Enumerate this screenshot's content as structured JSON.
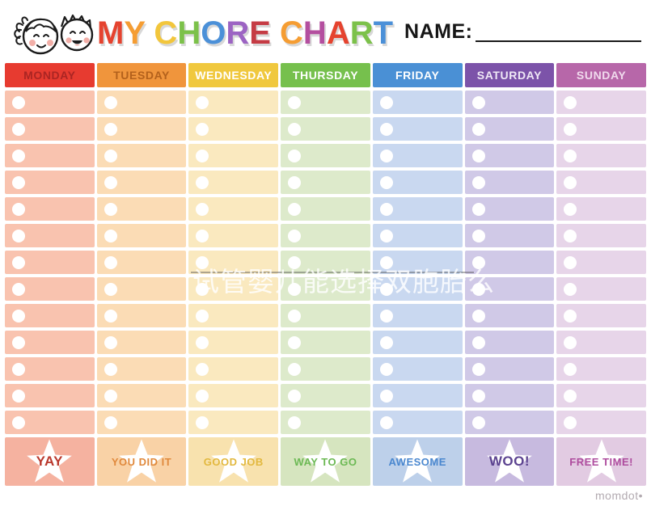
{
  "header": {
    "title_letters": [
      {
        "ch": "M",
        "color": "#E5432F"
      },
      {
        "ch": "Y",
        "color": "#F59D33"
      },
      {
        "ch": " ",
        "color": ""
      },
      {
        "ch": "C",
        "color": "#F2C63C"
      },
      {
        "ch": "H",
        "color": "#7CC14A"
      },
      {
        "ch": "O",
        "color": "#4B90D8"
      },
      {
        "ch": "R",
        "color": "#9C64C3"
      },
      {
        "ch": "E",
        "color": "#C53B44"
      },
      {
        "ch": " ",
        "color": ""
      },
      {
        "ch": "C",
        "color": "#F59D33"
      },
      {
        "ch": "H",
        "color": "#B44F9F"
      },
      {
        "ch": "A",
        "color": "#E5432F"
      },
      {
        "ch": "R",
        "color": "#7CC14A"
      },
      {
        "ch": "T",
        "color": "#4B90D8"
      }
    ],
    "name_label": "NAME:"
  },
  "chart": {
    "row_count": 13,
    "columns": [
      {
        "day": "MONDAY",
        "reward": "YAY",
        "header_bg": "#E73B30",
        "header_fg": "#AB2523",
        "cell_bg": "#F9C3AF",
        "footer_bg": "#F5B2A0",
        "reward_fg": "#BA392D"
      },
      {
        "day": "TUESDAY",
        "reward": "YOU DID IT",
        "header_bg": "#F0953C",
        "header_fg": "#B3611C",
        "cell_bg": "#FBDCB5",
        "footer_bg": "#F9D2A6",
        "reward_fg": "#E0893C"
      },
      {
        "day": "WEDNESDAY",
        "reward": "GOOD JOB",
        "header_bg": "#F0C83E",
        "header_fg": "#FFFFFF",
        "cell_bg": "#FAE9BF",
        "footer_bg": "#F8E2AE",
        "reward_fg": "#E2B83E"
      },
      {
        "day": "THURSDAY",
        "reward": "WAY TO GO",
        "header_bg": "#76C04D",
        "header_fg": "#FFFFFF",
        "cell_bg": "#DDEACB",
        "footer_bg": "#D6E5BF",
        "reward_fg": "#6CB954"
      },
      {
        "day": "FRIDAY",
        "reward": "AWESOME",
        "header_bg": "#4A90D5",
        "header_fg": "#FFFFFF",
        "cell_bg": "#C9D8F0",
        "footer_bg": "#BDD0EA",
        "reward_fg": "#4A87CF"
      },
      {
        "day": "SATURDAY",
        "reward": "WOO!",
        "header_bg": "#7C53A9",
        "header_fg": "#EFE8F6",
        "cell_bg": "#D0C9E7",
        "footer_bg": "#C7BADF",
        "reward_fg": "#5C4390"
      },
      {
        "day": "SUNDAY",
        "reward": "FREE TIME!",
        "header_bg": "#B767A9",
        "header_fg": "#F0DAED",
        "cell_bg": "#E7D5E9",
        "footer_bg": "#E2CBE2",
        "reward_fg": "#AE4C9E"
      }
    ]
  },
  "watermark": {
    "text": "试管婴儿能选择双胞胎么"
  },
  "footer": {
    "logo": "momdot•"
  }
}
